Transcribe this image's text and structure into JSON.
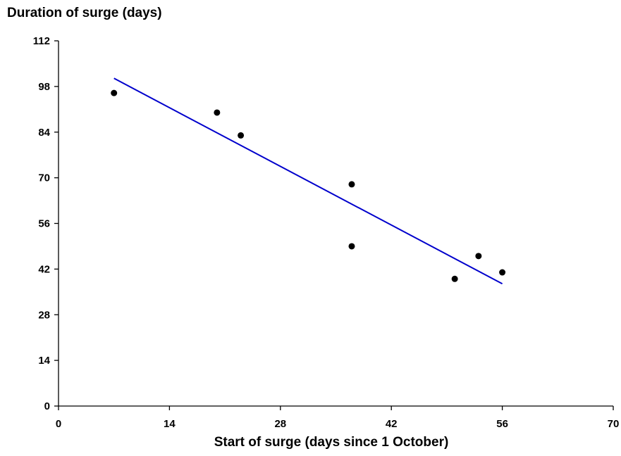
{
  "chart_data": {
    "type": "scatter",
    "title": "",
    "xlabel": "Start of surge (days since 1 October)",
    "ylabel": "Duration of surge (days)",
    "xlim": [
      0,
      70
    ],
    "ylim": [
      0,
      112
    ],
    "xticks": [
      0,
      14,
      28,
      42,
      56,
      70
    ],
    "yticks": [
      0,
      14,
      28,
      42,
      56,
      70,
      84,
      98,
      112
    ],
    "grid": false,
    "points": [
      {
        "x": 7,
        "y": 96
      },
      {
        "x": 20,
        "y": 90
      },
      {
        "x": 23,
        "y": 83
      },
      {
        "x": 37,
        "y": 68
      },
      {
        "x": 37,
        "y": 49
      },
      {
        "x": 50,
        "y": 39
      },
      {
        "x": 53,
        "y": 46
      },
      {
        "x": 56,
        "y": 41
      }
    ],
    "trendline": {
      "x": [
        7,
        56
      ],
      "y": [
        100.5,
        37.5
      ]
    },
    "colors": {
      "points": "#000000",
      "trendline": "#0000cc",
      "axes": "#000000"
    }
  }
}
